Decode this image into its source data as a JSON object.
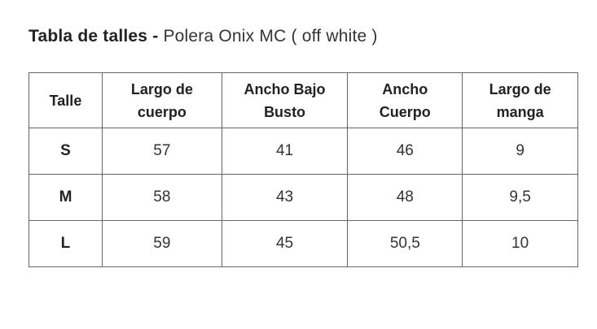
{
  "header": {
    "title_bold": "Tabla de talles -",
    "title_rest": "Polera Onix MC ( off white )"
  },
  "table": {
    "columns": [
      "Talle",
      "Largo de cuerpo",
      "Ancho Bajo Busto",
      "Ancho Cuerpo",
      "Largo de manga"
    ],
    "rows": [
      [
        "S",
        "57",
        "41",
        "46",
        "9"
      ],
      [
        "M",
        "58",
        "43",
        "48",
        "9,5"
      ],
      [
        "L",
        "59",
        "45",
        "50,5",
        "10"
      ]
    ]
  }
}
